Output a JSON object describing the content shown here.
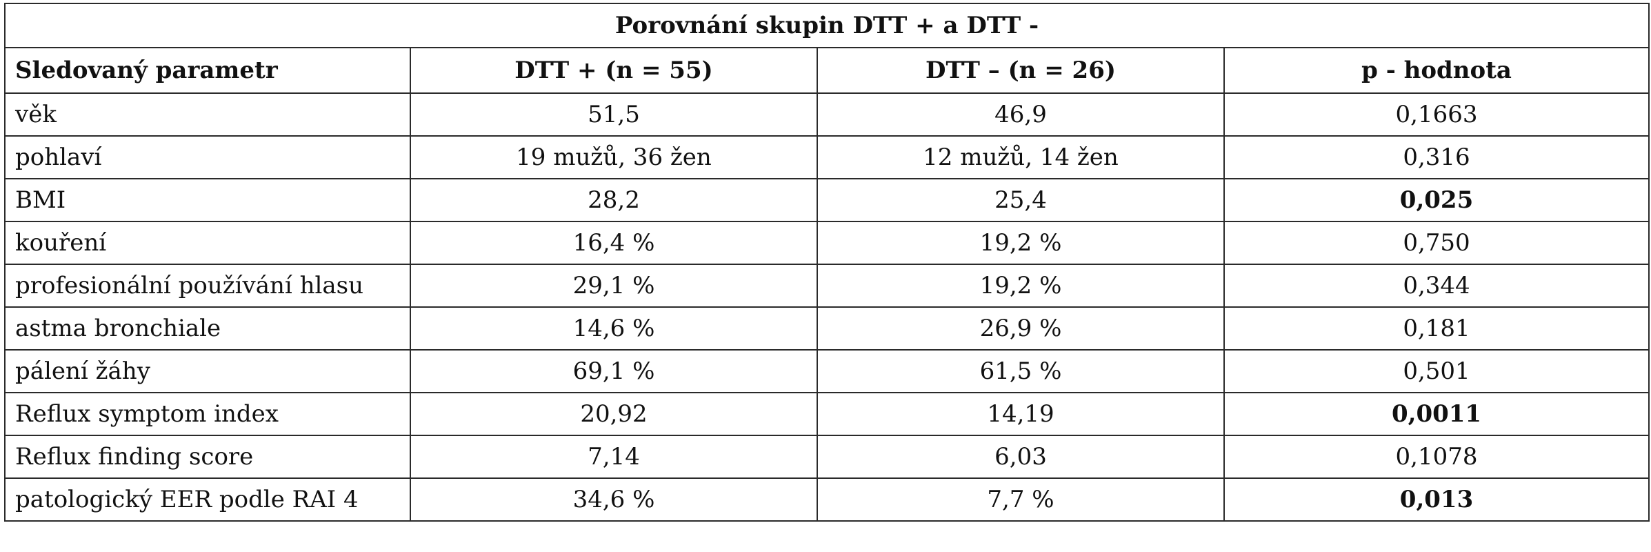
{
  "table": {
    "title": "Porovnání skupin DTT + a DTT -",
    "headers": [
      "Sledovaný parametr",
      "DTT + (n = 55)",
      "DTT – (n = 26)",
      "p - hodnota"
    ],
    "rows": [
      {
        "param": "věk",
        "dtt_plus": "51,5",
        "dtt_minus": "46,9",
        "p": "0,1663",
        "significant": false
      },
      {
        "param": "pohlaví",
        "dtt_plus": "19 mužů, 36 žen",
        "dtt_minus": "12 mužů, 14 žen",
        "p": "0,316",
        "significant": false
      },
      {
        "param": "BMI",
        "dtt_plus": "28,2",
        "dtt_minus": "25,4",
        "p": "0,025",
        "significant": true
      },
      {
        "param": "kouření",
        "dtt_plus": "16,4 %",
        "dtt_minus": "19,2 %",
        "p": "0,750",
        "significant": false
      },
      {
        "param": "profesionální používání hlasu",
        "dtt_plus": "29,1 %",
        "dtt_minus": "19,2 %",
        "p": "0,344",
        "significant": false
      },
      {
        "param": "astma bronchiale",
        "dtt_plus": "14,6 %",
        "dtt_minus": "26,9 %",
        "p": "0,181",
        "significant": false
      },
      {
        "param": "pálení žáhy",
        "dtt_plus": "69,1 %",
        "dtt_minus": "61,5 %",
        "p": "0,501",
        "significant": false
      },
      {
        "param": "Reflux symptom index",
        "dtt_plus": "20,92",
        "dtt_minus": "14,19",
        "p": "0,0011",
        "significant": true
      },
      {
        "param": "Reflux finding score",
        "dtt_plus": "7,14",
        "dtt_minus": "6,03",
        "p": "0,1078",
        "significant": false
      },
      {
        "param": "patologický EER podle RAI 4",
        "dtt_plus": "34,6 %",
        "dtt_minus": "7,7 %",
        "p": "0,013",
        "significant": true
      }
    ]
  }
}
